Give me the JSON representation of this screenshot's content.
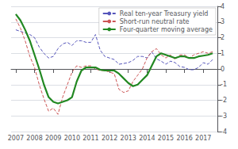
{
  "chart_data": {
    "type": "line",
    "x": [
      2007.0,
      2007.25,
      2007.5,
      2007.75,
      2008.0,
      2008.25,
      2008.5,
      2008.75,
      2009.0,
      2009.25,
      2009.5,
      2009.75,
      2010.0,
      2010.25,
      2010.5,
      2010.75,
      2011.0,
      2011.25,
      2011.5,
      2011.75,
      2012.0,
      2012.25,
      2012.5,
      2012.75,
      2013.0,
      2013.25,
      2013.5,
      2013.75,
      2014.0,
      2014.25,
      2014.5,
      2014.75,
      2015.0,
      2015.25,
      2015.5,
      2015.75,
      2016.0,
      2016.25,
      2016.5,
      2016.75,
      2017.0,
      2017.25,
      2017.5
    ],
    "series": [
      {
        "name": "Real ten-year Treasury yield",
        "color": "#5555bb",
        "line_style": "dashed",
        "values": [
          2.5,
          2.4,
          2.3,
          2.2,
          2.0,
          1.4,
          1.0,
          0.7,
          0.8,
          1.3,
          1.6,
          1.7,
          1.5,
          1.8,
          1.8,
          1.7,
          1.7,
          2.2,
          1.2,
          0.8,
          0.7,
          0.6,
          0.3,
          0.35,
          0.4,
          0.55,
          0.8,
          0.8,
          0.7,
          1.1,
          0.65,
          0.5,
          0.3,
          0.5,
          0.4,
          0.15,
          0.1,
          -0.05,
          -0.05,
          0.1,
          0.4,
          0.3,
          0.6
        ]
      },
      {
        "name": "Short-run neutral rate",
        "color": "#cc5555",
        "line_style": "dashed",
        "values": [
          3.2,
          2.6,
          1.8,
          0.8,
          0.1,
          -1.0,
          -1.9,
          -2.7,
          -2.5,
          -2.9,
          -1.8,
          -1.0,
          -0.2,
          0.2,
          0.1,
          0.2,
          0.2,
          0.0,
          -0.1,
          -0.1,
          -0.2,
          -0.3,
          -1.3,
          -1.5,
          -1.4,
          -0.8,
          -0.4,
          0.0,
          0.7,
          1.1,
          1.3,
          0.9,
          0.7,
          0.9,
          0.6,
          0.9,
          0.9,
          0.7,
          0.9,
          1.0,
          1.1,
          1.0,
          1.1
        ]
      },
      {
        "name": "Four-quarter moving average",
        "color": "#228822",
        "line_style": "solid",
        "values": [
          3.5,
          3.1,
          2.5,
          1.8,
          0.9,
          0.0,
          -1.0,
          -1.8,
          -2.1,
          -2.2,
          -2.1,
          -2.0,
          -1.8,
          -0.8,
          -0.1,
          0.1,
          0.1,
          0.1,
          -0.05,
          -0.1,
          -0.1,
          -0.1,
          -0.3,
          -0.6,
          -0.9,
          -1.1,
          -1.0,
          -0.7,
          -0.4,
          0.2,
          0.8,
          1.0,
          0.9,
          0.8,
          0.7,
          0.8,
          0.8,
          0.7,
          0.7,
          0.8,
          0.85,
          0.9,
          1.0
        ]
      }
    ],
    "xlim": [
      2006.75,
      2017.75
    ],
    "ylim": [
      -4,
      4
    ],
    "xticks": [
      2007,
      2008,
      2009,
      2010,
      2011,
      2012,
      2013,
      2014,
      2015,
      2016,
      2017
    ],
    "yticks": [
      -4,
      -3,
      -2,
      -1,
      0,
      1,
      2,
      3,
      4
    ],
    "grid": true,
    "legend": "upper right"
  }
}
